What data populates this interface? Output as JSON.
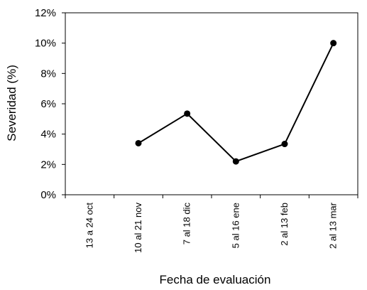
{
  "chart_data": {
    "type": "line",
    "title": "",
    "xlabel": "Fecha de evaluación",
    "ylabel": "Severidad (%)",
    "categories": [
      "13 a 24 oct",
      "10 al 21 nov",
      "7 al 18 dic",
      "5 al 16 ene",
      "2 al 13 feb",
      "2 al 13 mar"
    ],
    "series": [
      {
        "values": [
          null,
          3.4,
          5.35,
          2.2,
          3.35,
          10.0
        ]
      }
    ],
    "ylim": [
      0,
      12
    ],
    "yticks": [
      0,
      2,
      4,
      6,
      8,
      10,
      12
    ],
    "ytick_labels": [
      "0%",
      "2%",
      "4%",
      "6%",
      "8%",
      "10%",
      "12%"
    ],
    "grid": false,
    "legend": "none",
    "colors": {
      "line": "#000000",
      "marker": "#000000"
    }
  }
}
